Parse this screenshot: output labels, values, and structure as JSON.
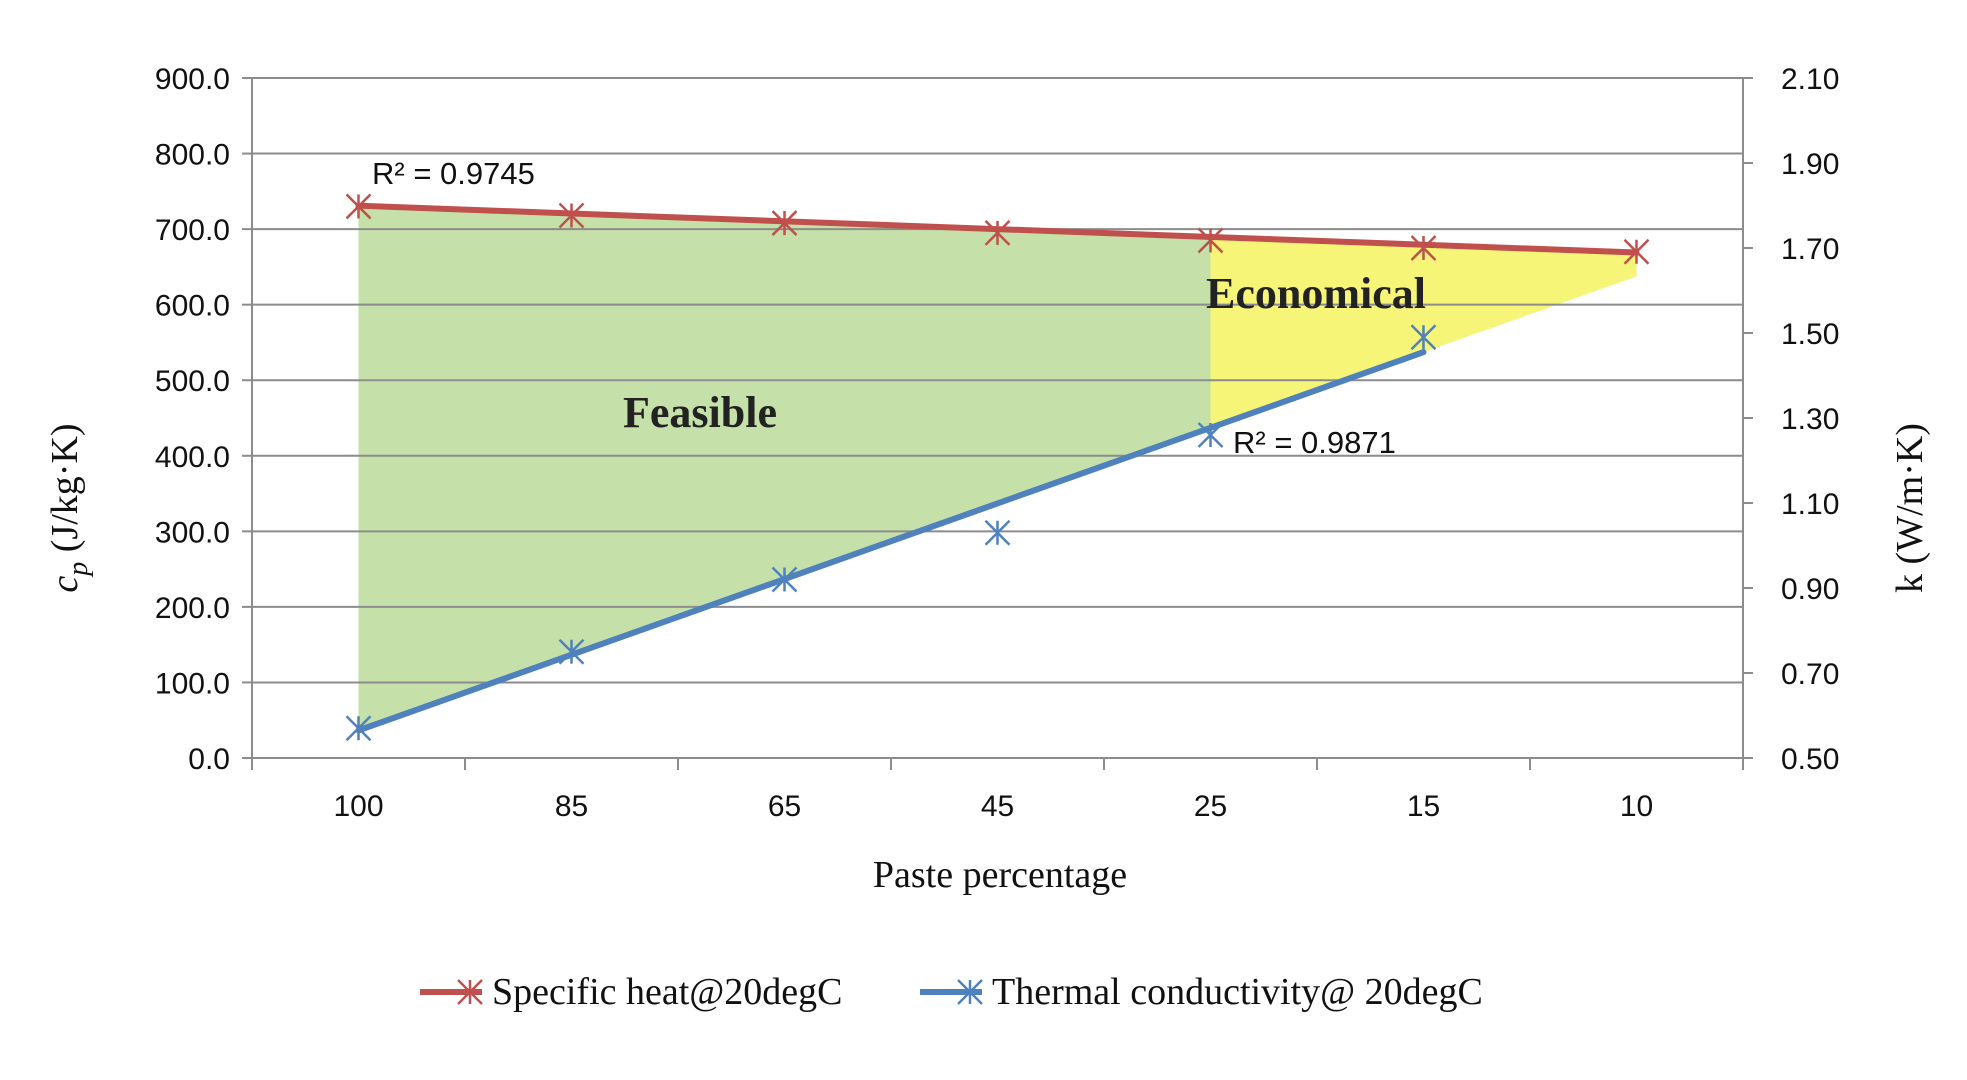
{
  "chart_data": {
    "type": "line",
    "categories": [
      "100",
      "85",
      "65",
      "45",
      "25",
      "15",
      "10"
    ],
    "xlabel": "Paste percentage",
    "ylabel_left_var": "c",
    "ylabel_left_sub": "p",
    "ylabel_left_unit": " (J/kg·K)",
    "ylabel_right": "k (W/m·K)",
    "ylim_left": [
      0,
      900
    ],
    "ylim_right": [
      0.5,
      2.1
    ],
    "yticks_left": [
      "0.0",
      "100.0",
      "200.0",
      "300.0",
      "400.0",
      "500.0",
      "600.0",
      "700.0",
      "800.0",
      "900.0"
    ],
    "yticks_right": [
      "0.50",
      "0.70",
      "0.90",
      "1.10",
      "1.30",
      "1.50",
      "1.70",
      "1.90",
      "2.10"
    ],
    "grid": true,
    "legend_position": "bottom",
    "series": [
      {
        "name": "Specific heat@20degC",
        "axis": "left",
        "color": "#C0504D",
        "values": [
          730,
          718,
          708,
          695,
          685,
          675,
          670
        ],
        "trendline": [
          731,
          669
        ],
        "r2": "R² = 0.9745"
      },
      {
        "name": "Thermal conductivity@ 20degC",
        "axis": "right",
        "color": "#4F81BD",
        "values": [
          0.57,
          0.75,
          0.92,
          1.03,
          1.26,
          1.49,
          null
        ],
        "trendline": [
          0.565,
          1.455
        ],
        "r2": "R² = 0.9871"
      }
    ],
    "regions": [
      {
        "label": "Feasible",
        "color": "#c5e0a8",
        "from": "100",
        "to": "25"
      },
      {
        "label": "Economical",
        "color": "#f7f577",
        "from": "25",
        "to": "10"
      }
    ]
  }
}
